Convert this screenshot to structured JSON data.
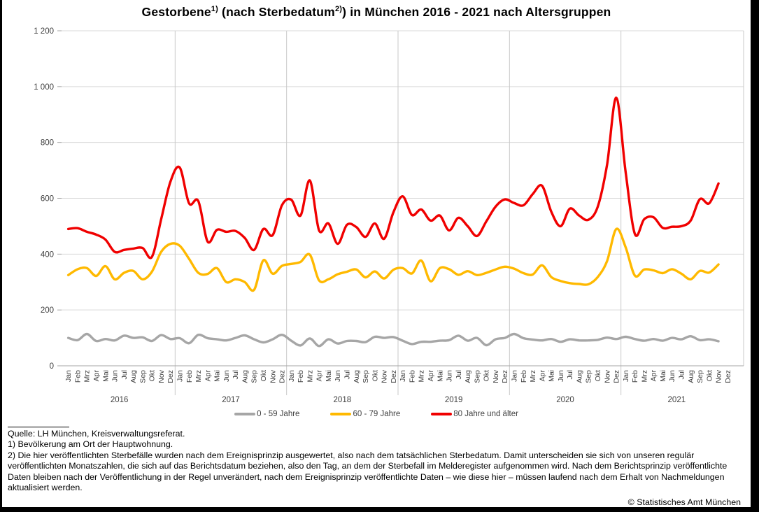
{
  "title": {
    "pre": "Gestorbene",
    "sup1": "1)",
    "mid": " (nach Sterbedatum",
    "sup2": "2)",
    "post": ") in München 2016 - 2021 nach Altersgruppen"
  },
  "chart_data": {
    "type": "line",
    "title": "Gestorbene (nach Sterbedatum) in München 2016 - 2021 nach Altersgruppen",
    "x_unit": "month",
    "years": [
      "2016",
      "2017",
      "2018",
      "2019",
      "2020",
      "2021"
    ],
    "month_labels": [
      "Jan",
      "Feb",
      "Mrz",
      "Apr",
      "Mai",
      "Jun",
      "Jul",
      "Aug",
      "Sep",
      "Okt",
      "Nov",
      "Dez"
    ],
    "months_covered": "Jan 2016 - Nov 2021",
    "y_axis": {
      "min": 0,
      "max": 1200,
      "step": 200,
      "tick_labels": [
        "0",
        "200",
        "400",
        "600",
        "800",
        "1 000",
        "1 200"
      ]
    },
    "grid": true,
    "legend_position": "bottom",
    "series": [
      {
        "name": "0 - 59 Jahre",
        "color": "#a6a6a6",
        "values": [
          100,
          92,
          114,
          89,
          96,
          91,
          108,
          100,
          102,
          89,
          110,
          96,
          99,
          81,
          111,
          99,
          95,
          91,
          100,
          109,
          95,
          84,
          95,
          111,
          90,
          73,
          98,
          71,
          95,
          80,
          89,
          89,
          85,
          104,
          100,
          103,
          90,
          78,
          86,
          86,
          90,
          92,
          108,
          90,
          100,
          74,
          95,
          100,
          114,
          99,
          94,
          91,
          96,
          86,
          95,
          91,
          91,
          93,
          101,
          96,
          104,
          96,
          90,
          96,
          90,
          100,
          95,
          106,
          92,
          95,
          88
        ]
      },
      {
        "name": "60 - 79 Jahre",
        "color": "#ffb900",
        "values": [
          325,
          346,
          350,
          322,
          357,
          310,
          333,
          340,
          310,
          337,
          408,
          437,
          430,
          383,
          333,
          329,
          350,
          300,
          310,
          300,
          272,
          378,
          330,
          358,
          365,
          372,
          398,
          306,
          310,
          328,
          337,
          345,
          317,
          338,
          313,
          344,
          350,
          331,
          377,
          303,
          350,
          346,
          326,
          339,
          325,
          333,
          345,
          355,
          348,
          332,
          327,
          360,
          318,
          304,
          296,
          293,
          292,
          318,
          375,
          490,
          425,
          323,
          345,
          342,
          332,
          346,
          330,
          310,
          340,
          334,
          363
        ]
      },
      {
        "name": "80 Jahre und älter",
        "color": "#f00000",
        "values": [
          490,
          493,
          480,
          470,
          452,
          408,
          415,
          420,
          422,
          390,
          525,
          660,
          710,
          582,
          590,
          445,
          487,
          480,
          483,
          458,
          415,
          490,
          468,
          575,
          595,
          538,
          664,
          485,
          510,
          437,
          505,
          497,
          462,
          510,
          455,
          550,
          607,
          540,
          560,
          520,
          538,
          485,
          530,
          500,
          465,
          517,
          570,
          596,
          583,
          575,
          615,
          645,
          552,
          500,
          563,
          538,
          523,
          570,
          720,
          960,
          695,
          472,
          525,
          532,
          494,
          498,
          500,
          520,
          597,
          582,
          653
        ]
      }
    ]
  },
  "footer": {
    "source_line": "Quelle: LH München, Kreisverwaltungsreferat.",
    "note1": "1) Bevölkerung am Ort der Hauptwohnung.",
    "note2": "2) Die hier veröffentlichten Sterbefälle wurden nach dem Ereignisprinzip ausgewertet, also nach dem tatsächlichen Sterbedatum. Damit unterscheiden sie sich von unseren regulär veröffentlichten Monatszahlen, die sich auf das Berichtsdatum beziehen, also den Tag, an dem der Sterbefall im Melderegister aufgenommen wird. Nach dem Berichtsprinzip veröffentlichte Daten bleiben nach der Veröffentlichung in der Regel unverändert, nach dem Ereignisprinzip veröffentlichte Daten – wie diese hier – müssen laufend nach dem Erhalt von Nachmeldungen aktualisiert werden.",
    "copyright": "© Statistisches Amt München"
  }
}
